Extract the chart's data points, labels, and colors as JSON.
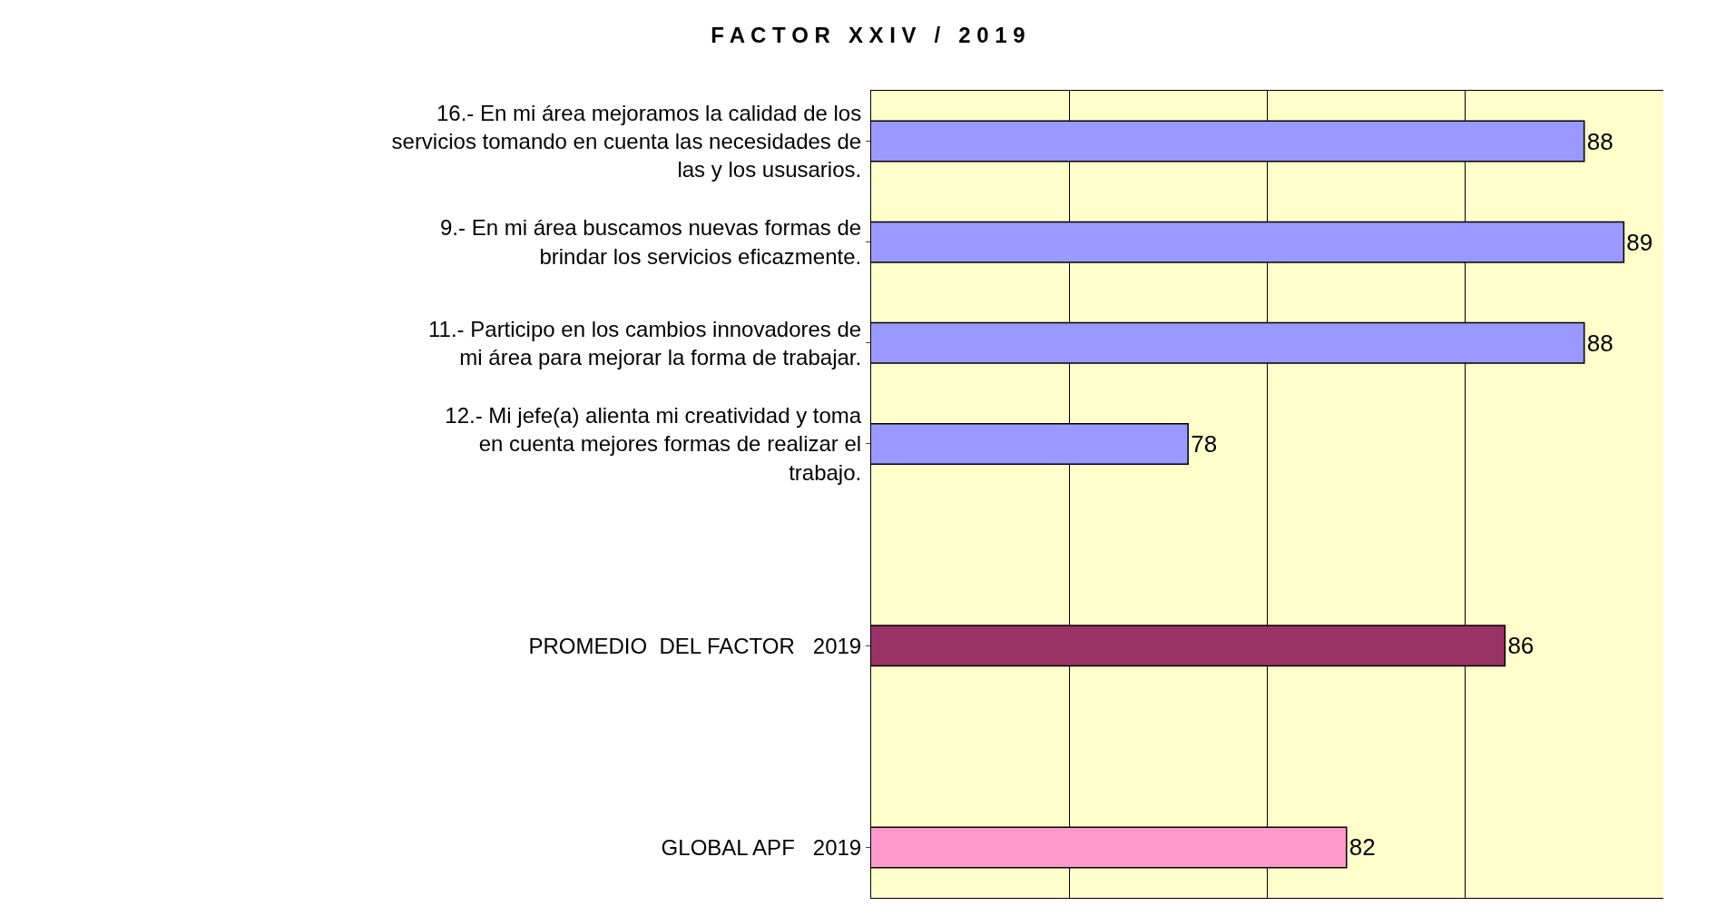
{
  "chart_data": {
    "type": "bar",
    "orientation": "horizontal",
    "title": "F A C T O R   X X I V   /   2 0 1 9",
    "categories": [
      "16.- En mi área mejoramos la calidad de los servicios tomando en cuenta las necesidades de las y los ususarios.",
      "9.- En mi área buscamos nuevas formas de brindar los servicios eficazmente.",
      "11.- Participo en los cambios innovadores de mi área para mejorar la forma de trabajar.",
      "12.- Mi jefe(a) alienta mi creatividad y toma en cuenta mejores formas de realizar el trabajo.",
      null,
      "PROMEDIO  DEL FACTOR   2019",
      null,
      "GLOBAL APF   2019"
    ],
    "values": [
      88,
      89,
      88,
      78,
      null,
      86,
      null,
      82
    ],
    "colors": [
      "#9999ff",
      "#9999ff",
      "#9999ff",
      "#9999ff",
      null,
      "#993366",
      null,
      "#ff99cc"
    ],
    "xlim": [
      70,
      90
    ],
    "xticks": [
      {
        "value": 70,
        "label": null
      },
      {
        "value": 75,
        "label": null
      },
      {
        "value": 80,
        "label": null
      },
      {
        "value": 85,
        "label": null
      },
      {
        "value": 90,
        "label": null
      }
    ],
    "grid": "x",
    "data_labels": true,
    "tick_labels": "y"
  }
}
